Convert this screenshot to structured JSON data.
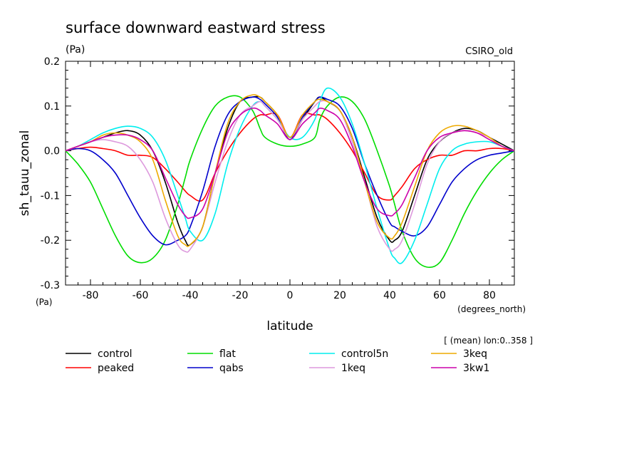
{
  "chart_data": {
    "type": "line",
    "title": "surface downward eastward stress",
    "title_units": "(Pa)",
    "model": "CSIRO_old",
    "ylabel": "sh_tauu_zonal",
    "y_units": "(Pa)",
    "xlabel": "latitude",
    "x_units": "(degrees_north)",
    "note": "[ (mean) lon:0..358 ]",
    "xlim": [
      -90,
      90
    ],
    "ylim": [
      -0.3,
      0.2
    ],
    "xticks": [
      "-80",
      "-60",
      "-40",
      "-20",
      "0",
      "20",
      "40",
      "60",
      "80"
    ],
    "yticks": [
      "0.2",
      "0.1",
      "0.0",
      "-0.1",
      "-0.2",
      "-0.3"
    ],
    "grid": false,
    "legend_position": "bottom",
    "x": [
      -90,
      -85,
      -80,
      -75,
      -70,
      -65,
      -60,
      -55,
      -50,
      -45,
      -42,
      -40,
      -35,
      -30,
      -25,
      -20,
      -15,
      -12,
      -10,
      -5,
      0,
      5,
      10,
      12,
      15,
      20,
      25,
      30,
      35,
      40,
      42,
      45,
      50,
      55,
      60,
      65,
      70,
      75,
      80,
      85,
      90
    ],
    "series": [
      {
        "name": "control",
        "color": "#000000",
        "values": [
          0.0,
          0.01,
          0.02,
          0.03,
          0.04,
          0.045,
          0.035,
          0.0,
          -0.07,
          -0.16,
          -0.2,
          -0.21,
          -0.17,
          -0.05,
          0.05,
          0.11,
          0.12,
          0.12,
          0.11,
          0.08,
          0.03,
          0.07,
          0.11,
          0.12,
          0.11,
          0.09,
          0.03,
          -0.06,
          -0.15,
          -0.2,
          -0.2,
          -0.18,
          -0.1,
          -0.02,
          0.02,
          0.04,
          0.05,
          0.045,
          0.03,
          0.015,
          0.0
        ]
      },
      {
        "name": "peaked",
        "color": "#ff0000",
        "values": [
          0.0,
          0.005,
          0.008,
          0.005,
          0.0,
          -0.01,
          -0.01,
          -0.015,
          -0.04,
          -0.07,
          -0.09,
          -0.1,
          -0.11,
          -0.05,
          0.0,
          0.04,
          0.07,
          0.08,
          0.08,
          0.08,
          0.03,
          0.08,
          0.08,
          0.08,
          0.07,
          0.04,
          0.0,
          -0.05,
          -0.1,
          -0.11,
          -0.1,
          -0.08,
          -0.04,
          -0.02,
          -0.01,
          -0.01,
          0.0,
          0.0,
          0.005,
          0.005,
          0.0
        ]
      },
      {
        "name": "flat",
        "color": "#00dd00",
        "values": [
          0.0,
          -0.03,
          -0.07,
          -0.13,
          -0.19,
          -0.235,
          -0.25,
          -0.24,
          -0.2,
          -0.12,
          -0.06,
          -0.02,
          0.05,
          0.1,
          0.12,
          0.12,
          0.09,
          0.05,
          0.03,
          0.015,
          0.01,
          0.015,
          0.03,
          0.07,
          0.1,
          0.12,
          0.11,
          0.07,
          0.0,
          -0.08,
          -0.12,
          -0.18,
          -0.24,
          -0.26,
          -0.25,
          -0.2,
          -0.14,
          -0.09,
          -0.05,
          -0.02,
          0.0
        ]
      },
      {
        "name": "qabs",
        "color": "#0000cc",
        "values": [
          0.0,
          0.005,
          0.0,
          -0.02,
          -0.05,
          -0.1,
          -0.15,
          -0.19,
          -0.21,
          -0.2,
          -0.19,
          -0.17,
          -0.09,
          0.01,
          0.08,
          0.11,
          0.12,
          0.115,
          0.105,
          0.075,
          0.025,
          0.075,
          0.11,
          0.12,
          0.115,
          0.1,
          0.05,
          -0.03,
          -0.1,
          -0.16,
          -0.17,
          -0.18,
          -0.19,
          -0.17,
          -0.12,
          -0.07,
          -0.04,
          -0.02,
          -0.01,
          -0.005,
          0.0
        ]
      },
      {
        "name": "control5n",
        "color": "#00eeee",
        "values": [
          0.0,
          0.01,
          0.025,
          0.04,
          0.05,
          0.055,
          0.05,
          0.03,
          -0.02,
          -0.1,
          -0.15,
          -0.18,
          -0.2,
          -0.14,
          -0.03,
          0.05,
          0.1,
          0.11,
          0.1,
          0.07,
          0.03,
          0.03,
          0.07,
          0.11,
          0.14,
          0.12,
          0.06,
          -0.03,
          -0.13,
          -0.22,
          -0.24,
          -0.25,
          -0.2,
          -0.12,
          -0.04,
          0.0,
          0.015,
          0.02,
          0.02,
          0.01,
          0.0
        ]
      },
      {
        "name": "1keq",
        "color": "#dd99dd",
        "values": [
          0.0,
          0.01,
          0.02,
          0.025,
          0.02,
          0.01,
          -0.02,
          -0.07,
          -0.15,
          -0.21,
          -0.225,
          -0.22,
          -0.17,
          -0.07,
          0.02,
          0.08,
          0.1,
          0.11,
          0.1,
          0.07,
          0.03,
          0.07,
          0.1,
          0.11,
          0.11,
          0.09,
          0.02,
          -0.07,
          -0.17,
          -0.22,
          -0.22,
          -0.2,
          -0.12,
          -0.03,
          0.02,
          0.04,
          0.045,
          0.04,
          0.03,
          0.01,
          0.0
        ]
      },
      {
        "name": "3keq",
        "color": "#eeaa00",
        "values": [
          0.0,
          0.01,
          0.02,
          0.035,
          0.04,
          0.035,
          0.02,
          -0.02,
          -0.11,
          -0.19,
          -0.21,
          -0.21,
          -0.17,
          -0.05,
          0.06,
          0.11,
          0.125,
          0.12,
          0.11,
          0.08,
          0.03,
          0.08,
          0.11,
          0.115,
          0.11,
          0.09,
          0.03,
          -0.07,
          -0.16,
          -0.195,
          -0.19,
          -0.16,
          -0.08,
          0.0,
          0.04,
          0.055,
          0.055,
          0.045,
          0.03,
          0.01,
          0.0
        ]
      },
      {
        "name": "3kw1",
        "color": "#cc00aa",
        "values": [
          0.0,
          0.01,
          0.02,
          0.03,
          0.035,
          0.035,
          0.025,
          0.0,
          -0.06,
          -0.12,
          -0.145,
          -0.15,
          -0.13,
          -0.05,
          0.04,
          0.08,
          0.095,
          0.09,
          0.08,
          0.06,
          0.025,
          0.06,
          0.085,
          0.095,
          0.09,
          0.07,
          0.01,
          -0.07,
          -0.13,
          -0.145,
          -0.14,
          -0.12,
          -0.06,
          0.0,
          0.03,
          0.04,
          0.045,
          0.04,
          0.025,
          0.01,
          0.0
        ]
      }
    ]
  },
  "legend_order": [
    "control",
    "flat",
    "control5n",
    "3keq",
    "peaked",
    "qabs",
    "1keq",
    "3kw1"
  ]
}
